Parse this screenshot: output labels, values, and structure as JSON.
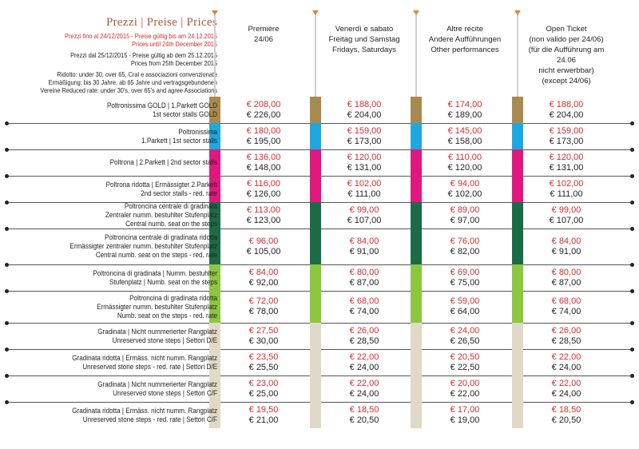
{
  "title": "Prezzi | Preise | Prices",
  "info": {
    "line1": "Prezzi fino al 24/12/2015 - Preise gültig bis am 24.12.2015",
    "line2": "Prices until 24th December 2015",
    "line3": "Prezzi dal 25/12/2015 - Preise gültig ab dem 25.12.2015",
    "line4": "Prices from 25th December 2015",
    "line5": "Ridotto: under 30, over 65, Cral e associazioni convenzionate",
    "line6": "Ermäßigung: bis 30 Jahre, ab 65 Jahre und vertragsgebundenen",
    "line7": "Vereine Reduced rate: under 30's, over 65's and agree Associations"
  },
  "columns": [
    {
      "lines": [
        "Première",
        "24/06"
      ]
    },
    {
      "lines": [
        "Venerdì e sabato",
        "Freitag und Samstag",
        "Fridays, Saturdays"
      ]
    },
    {
      "lines": [
        "Altre recite",
        "Andere Aufführungen",
        "Other performances"
      ]
    },
    {
      "lines": [
        "Open Ticket",
        "(non valido per 24/06)",
        "(für die Aufführung am 24.06",
        "nicht erwerbbar)",
        "(except 24/06)"
      ]
    }
  ],
  "colors": {
    "gold": "#a98a4e",
    "blue": "#1fa8e0",
    "magenta": "#e0177f",
    "green": "#1b6b47",
    "lime": "#8dc63f",
    "stone": "#e1d9c7"
  },
  "rows": [
    {
      "label": [
        "Poltronissima GOLD | 1.Parkett GOLD",
        "1st sector stalls GOLD"
      ],
      "color": "gold",
      "prices": [
        [
          "€ 208,00",
          "€ 226,00"
        ],
        [
          "€ 188,00",
          "€ 204,00"
        ],
        [
          "€ 174,00",
          "€ 189,00"
        ],
        [
          "€ 188,00",
          "€ 204,00"
        ]
      ]
    },
    {
      "label": [
        "Poltronissima",
        "1.Parkett | 1st sector stalls"
      ],
      "color": "blue",
      "prices": [
        [
          "€ 180,00",
          "€ 195,00"
        ],
        [
          "€ 159,00",
          "€ 173,00"
        ],
        [
          "€ 145,00",
          "€ 158,00"
        ],
        [
          "€ 159,00",
          "€ 173,00"
        ]
      ]
    },
    {
      "label": [
        "Poltrona | 2.Parkett | 2nd sector stalls"
      ],
      "color": "magenta",
      "prices": [
        [
          "€ 136,00",
          "€ 148,00"
        ],
        [
          "€ 120,00",
          "€ 131,00"
        ],
        [
          "€ 110,00",
          "€ 120,00"
        ],
        [
          "€ 120,00",
          "€ 131,00"
        ]
      ]
    },
    {
      "label": [
        "Poltrona ridotta | Ermässigter 2.Parkett",
        "2nd sector stalls - red. rate"
      ],
      "color": "magenta",
      "prices": [
        [
          "€ 116,00",
          "€ 126,00"
        ],
        [
          "€ 102,00",
          "€ 111,00"
        ],
        [
          "€ 94,00",
          "€ 102,00"
        ],
        [
          "€ 102,00",
          "€ 111,00"
        ]
      ]
    },
    {
      "label": [
        "Poltroncina centrale di gradinata",
        "Zentraler numm. bestuhlter Stufenplatz",
        "Central numb. seat on the steps"
      ],
      "color": "green",
      "prices": [
        [
          "€ 113,00",
          "€ 123,00"
        ],
        [
          "€ 99,00",
          "€ 107,00"
        ],
        [
          "€ 89,00",
          "€ 97,00"
        ],
        [
          "€ 99,00",
          "€ 107,00"
        ]
      ]
    },
    {
      "label": [
        "Poltroncina centrale di gradinata ridotta",
        "Ermässigter zentraler numm. bestuhlter Stufenplatz",
        "Central numb. seat on the steps - red. rate"
      ],
      "color": "green",
      "prices": [
        [
          "€ 96,00",
          "€ 105,00"
        ],
        [
          "€ 84,00",
          "€ 91,00"
        ],
        [
          "€ 76,00",
          "€ 82,00"
        ],
        [
          "€ 84,00",
          "€ 91,00"
        ]
      ]
    },
    {
      "label": [
        "Poltroncina di gradinata | Numm. bestuhlter",
        "Stufenplatz | Numb. seat on the steps"
      ],
      "color": "lime",
      "prices": [
        [
          "€ 84,00",
          "€ 92,00"
        ],
        [
          "€ 80,00",
          "€ 87,00"
        ],
        [
          "€ 69,00",
          "€ 75,00"
        ],
        [
          "€ 80,00",
          "€ 87,00"
        ]
      ]
    },
    {
      "label": [
        "Poltroncina di gradinata ridotta",
        "Ermässigter numm. bestuhlter Stufenplatz",
        "Numb. seat on the steps - red. rate"
      ],
      "color": "lime",
      "prices": [
        [
          "€ 72,00",
          "€ 78,00"
        ],
        [
          "€ 68,00",
          "€ 74,00"
        ],
        [
          "€ 59,00",
          "€ 64,00"
        ],
        [
          "€ 68,00",
          "€ 74,00"
        ]
      ]
    },
    {
      "label": [
        "Gradinata | Nicht nummerierter Rangplatz",
        "Unreserved stone steps | Settori D/E"
      ],
      "color": "stone",
      "prices": [
        [
          "€ 27,50",
          "€ 30,00"
        ],
        [
          "€ 26,00",
          "€ 28,50"
        ],
        [
          "€ 24,00",
          "€ 26,50"
        ],
        [
          "€ 26,00",
          "€ 28,50"
        ]
      ]
    },
    {
      "label": [
        "Gradinata ridotta | Ermäss. nicht numm. Rangplatz",
        "Unreserved stone steps - red. rate | Settori D/E"
      ],
      "color": "stone",
      "prices": [
        [
          "€ 23,50",
          "€ 25,50"
        ],
        [
          "€ 22,00",
          "€ 24,00"
        ],
        [
          "€ 20,50",
          "€ 22,50"
        ],
        [
          "€ 22,00",
          "€ 24,00"
        ]
      ]
    },
    {
      "label": [
        "Gradinata | Nicht nummerierter Rangplatz",
        "Unreserved stone steps | Settori C/F"
      ],
      "color": "stone",
      "prices": [
        [
          "€ 23,00",
          "€ 25,00"
        ],
        [
          "€ 22,00",
          "€ 24,00"
        ],
        [
          "€ 20,00",
          "€ 22,00"
        ],
        [
          "€ 22,00",
          "€ 24,00"
        ]
      ]
    },
    {
      "label": [
        "Gradinata ridotta | Ermäss. nicht numm. Rangplatz",
        "Unreserved stone steps - red. rate | Settori C/F"
      ],
      "color": "stone",
      "prices": [
        [
          "€ 19,50",
          "€ 21,00"
        ],
        [
          "€ 18,50",
          "€ 20,50"
        ],
        [
          "€ 17,00",
          "€ 19,00"
        ],
        [
          "€ 18,50",
          "€ 20,50"
        ]
      ]
    }
  ]
}
